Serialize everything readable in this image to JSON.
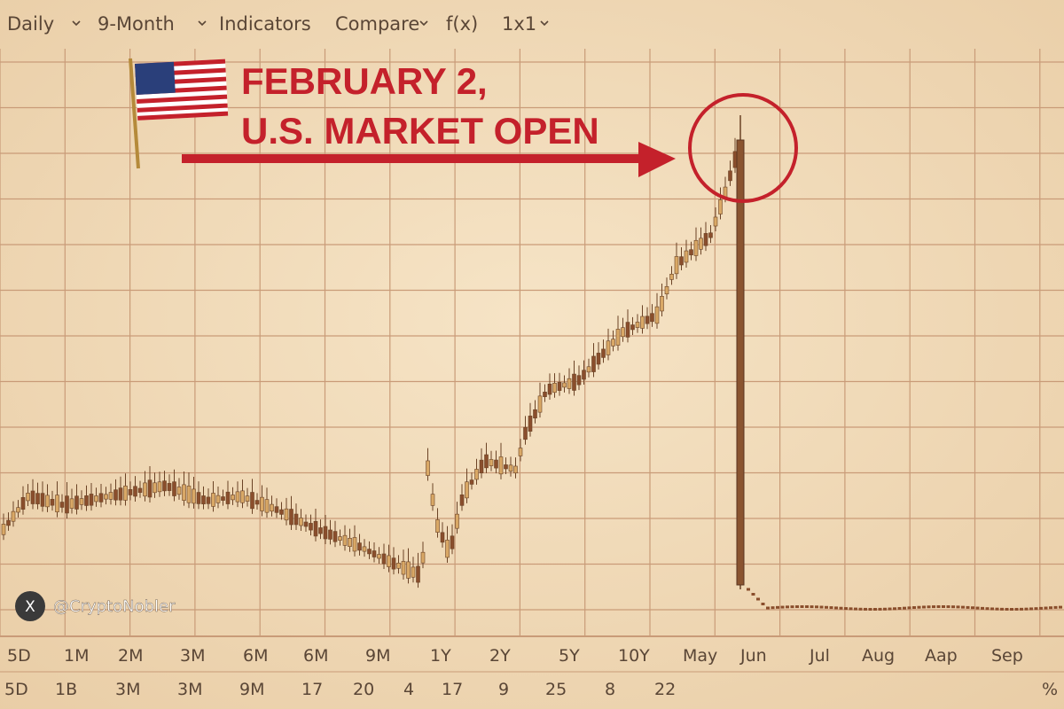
{
  "toolbar": [
    "Daily",
    "9-Month",
    "Indicators",
    "Compare",
    "f(x)",
    "1x1"
  ],
  "headline": [
    "FEBRUARY 2,",
    "U.S. MARKET OPEN"
  ],
  "x_labels_top": [
    "5D",
    "1M",
    "2M",
    "3M",
    "6M",
    "6M",
    "9M",
    "1Y",
    "2Y",
    "5Y",
    "10Y",
    "May",
    "Jun",
    "Jul",
    "Aug",
    "Aap",
    "Sep"
  ],
  "x_labels_bottom": [
    "5D",
    "1B",
    "3M",
    "3M",
    "9M",
    "17",
    "20",
    "4",
    "17",
    "9",
    "25",
    "8",
    "22"
  ],
  "percent": "%",
  "watermark": "@CryptoNobler"
}
